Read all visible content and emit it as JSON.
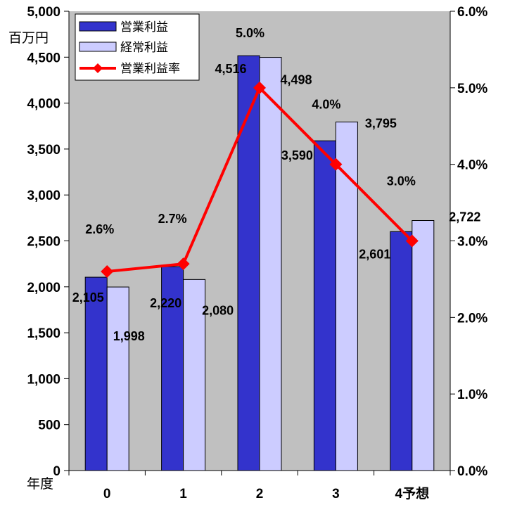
{
  "chart_data": {
    "type": "bar",
    "categories": [
      "0",
      "1",
      "2",
      "3",
      "4予想"
    ],
    "series": [
      {
        "name": "営業利益",
        "kind": "bar",
        "axis": "left",
        "color": "#3333CC",
        "values": [
          2105,
          2220,
          4516,
          3590,
          2601
        ],
        "labels": [
          "2,105",
          "2,220",
          "4,516",
          "3,590",
          "2,601"
        ]
      },
      {
        "name": "経常利益",
        "kind": "bar",
        "axis": "left",
        "color": "#CCCCFF",
        "values": [
          1998,
          2080,
          4498,
          3795,
          2722
        ],
        "labels": [
          "1,998",
          "2,080",
          "4,498",
          "3,795",
          "2,722"
        ]
      },
      {
        "name": "営業利益率",
        "kind": "line",
        "axis": "right",
        "color": "#FF0000",
        "values": [
          2.6,
          2.7,
          5.0,
          4.0,
          3.0
        ],
        "labels": [
          "2.6%",
          "2.7%",
          "5.0%",
          "4.0%",
          "3.0%"
        ]
      }
    ],
    "left_axis": {
      "unit": "百万円",
      "ylim": [
        0,
        5000
      ],
      "ticks": [
        0,
        500,
        1000,
        1500,
        2000,
        2500,
        3000,
        3500,
        4000,
        4500,
        5000
      ],
      "tick_labels": [
        "0",
        "500",
        "1,000",
        "1,500",
        "2,000",
        "2,500",
        "3,000",
        "3,500",
        "4,000",
        "4,500",
        "5,000"
      ]
    },
    "right_axis": {
      "ylim": [
        0,
        6
      ],
      "ticks": [
        0,
        1,
        2,
        3,
        4,
        5,
        6
      ],
      "tick_labels": [
        "0.0%",
        "1.0%",
        "2.0%",
        "3.0%",
        "4.0%",
        "5.0%",
        "6.0%"
      ]
    },
    "x_axis": {
      "label": "年度"
    },
    "plot_background": "#C0C0C0",
    "legend_position": "top-left",
    "grid": false
  }
}
